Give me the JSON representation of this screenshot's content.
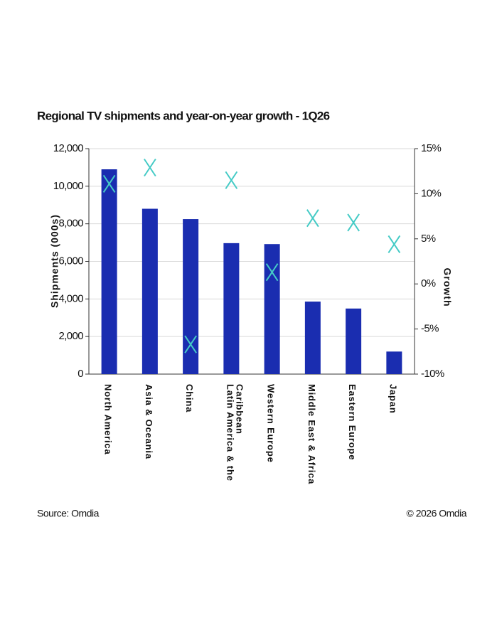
{
  "chart_data": {
    "type": "bar",
    "title": "Regional TV shipments and year-on-year growth - 1Q26",
    "y_label": "Shipments (000s)",
    "y2_label": "Growth",
    "source": "Source: Omdia",
    "copyright": "© 2026 Omdia",
    "categories": [
      "North America",
      "Asia & Oceania",
      "China",
      "Latin America & the Caribbean",
      "Western Europe",
      "Middle East & Africa",
      "Eastern Europe",
      "Japan"
    ],
    "series": [
      {
        "type": "bar",
        "color": "#1a2db0",
        "values": [
          10900,
          8800,
          8250,
          6970,
          6920,
          3860,
          3490,
          1200
        ]
      },
      {
        "type": "scatter",
        "marker": "x",
        "color": "#45cbc6",
        "axis": "y2",
        "values": [
          11.1,
          12.9,
          -6.7,
          11.5,
          1.3,
          7.3,
          6.8,
          4.4
        ]
      }
    ],
    "ylim": [
      0,
      12000
    ],
    "yticks": [
      0,
      {
        "value": 2000,
        "label": "2,000"
      },
      {
        "value": 4000,
        "label": "4,000"
      },
      {
        "value": 6000,
        "label": "6,000"
      },
      {
        "value": 8000,
        "label": "8,000"
      },
      {
        "value": 10000,
        "label": "10,000"
      },
      {
        "value": 12000,
        "label": "12,000"
      }
    ],
    "y2lim": [
      -10,
      15
    ],
    "y2ticks": [
      {
        "value": -10,
        "label": "-10%"
      },
      {
        "value": -5,
        "label": "-5%"
      },
      {
        "value": 0,
        "label": "0%"
      },
      {
        "value": 5,
        "label": "5%"
      },
      {
        "value": 10,
        "label": "10%"
      },
      {
        "value": 15,
        "label": "15%"
      }
    ],
    "grid": true
  }
}
